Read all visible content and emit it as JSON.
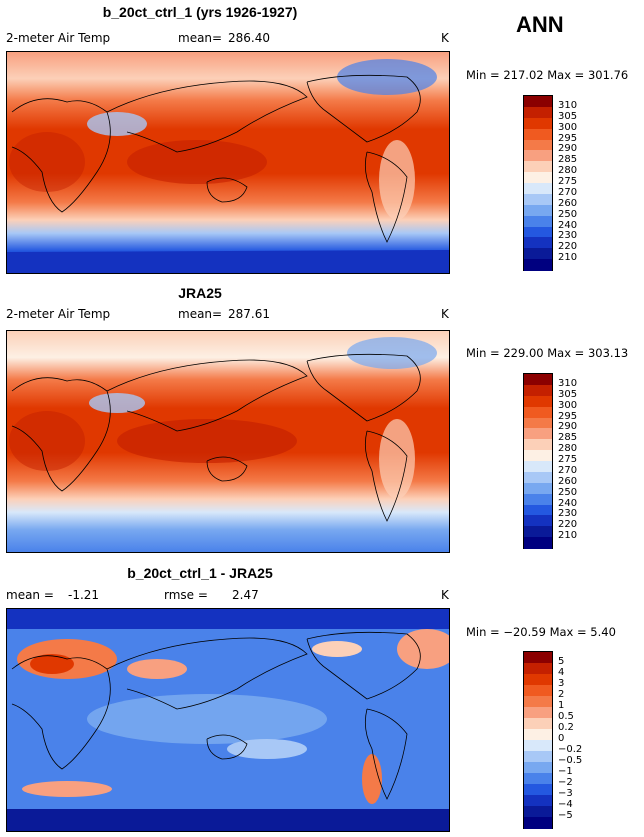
{
  "season": "ANN",
  "panels": [
    {
      "title": "b_20ct_ctrl_1 (yrs 1926-1927)",
      "left_label": "2-meter Air Temp",
      "stat_label": "mean=",
      "stat_value": "286.40",
      "unit": "K",
      "minmax": "Min = 217.02 Max = 301.76",
      "levels": [
        "310",
        "305",
        "300",
        "295",
        "290",
        "285",
        "280",
        "275",
        "270",
        "260",
        "250",
        "240",
        "230",
        "220",
        "210"
      ]
    },
    {
      "title": "JRA25",
      "left_label": "2-meter Air Temp",
      "stat_label": "mean=",
      "stat_value": "287.61",
      "unit": "K",
      "minmax": "Min = 229.00 Max = 303.13",
      "levels": [
        "310",
        "305",
        "300",
        "295",
        "290",
        "285",
        "280",
        "275",
        "270",
        "260",
        "250",
        "240",
        "230",
        "220",
        "210"
      ]
    },
    {
      "title": "b_20ct_ctrl_1 - JRA25",
      "left_label": "mean =",
      "left_value": "-1.21",
      "stat_label": "rmse =",
      "stat_value": "2.47",
      "unit": "K",
      "minmax": "Min = −20.59 Max =   5.40",
      "levels": [
        "5",
        "4",
        "3",
        "2",
        "1",
        "0.5",
        "0.2",
        "0",
        "−0.2",
        "−0.5",
        "−1",
        "−2",
        "−3",
        "−4",
        "−5"
      ]
    }
  ],
  "colors": {
    "abs_scale": [
      "#8b0000",
      "#c42000",
      "#e03800",
      "#f05a20",
      "#f47a48",
      "#f8a080",
      "#fcd0b8",
      "#fdf0e4",
      "#d8e8fa",
      "#a8c8f6",
      "#78a8f0",
      "#4a82ea",
      "#2458e0",
      "#1432c0",
      "#0a1a98",
      "#000080"
    ],
    "diff_scale": [
      "#8b0000",
      "#c42000",
      "#e03800",
      "#f05a20",
      "#f47a48",
      "#f8a080",
      "#fcd0b8",
      "#fdf0e4",
      "#d8e8fa",
      "#a8c8f6",
      "#78a8f0",
      "#4a82ea",
      "#2458e0",
      "#1432c0",
      "#0a1a98",
      "#000080"
    ]
  }
}
